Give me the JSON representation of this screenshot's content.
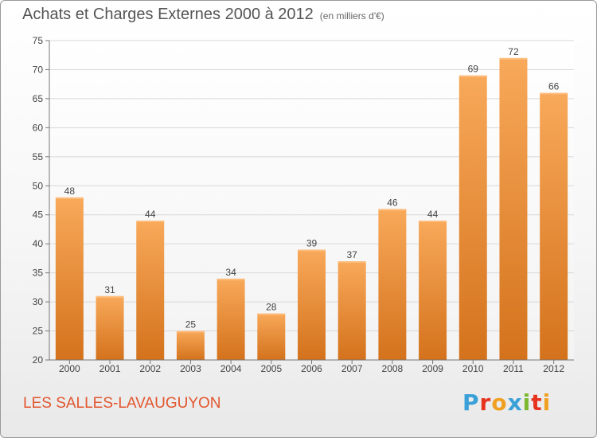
{
  "header": {
    "title": "Achats et Charges Externes 2000 à 2012",
    "subtitle": "(en milliers d'€)"
  },
  "footer": {
    "place": "LES SALLES-LAVAUGUYON",
    "logo_text": "Proxiti",
    "logo_colors": [
      "#3aa0d8",
      "#e6321e",
      "#f0a020",
      "#3aa0d8",
      "#7cb82f",
      "#e6321e",
      "#f0a020"
    ]
  },
  "chart_data": {
    "type": "bar",
    "categories": [
      "2000",
      "2001",
      "2002",
      "2003",
      "2004",
      "2005",
      "2006",
      "2007",
      "2008",
      "2009",
      "2010",
      "2011",
      "2012"
    ],
    "values": [
      48,
      31,
      44,
      25,
      34,
      28,
      39,
      37,
      46,
      44,
      69,
      72,
      66
    ],
    "title": "Achats et Charges Externes 2000 à 2012",
    "xlabel": "",
    "ylabel": "",
    "ylim": [
      20,
      75
    ],
    "yticks": [
      20,
      25,
      30,
      35,
      40,
      45,
      50,
      55,
      60,
      65,
      70,
      75
    ],
    "grid": true,
    "bar_color_top": "#f8a95a",
    "bar_color_bottom": "#d4721c"
  }
}
